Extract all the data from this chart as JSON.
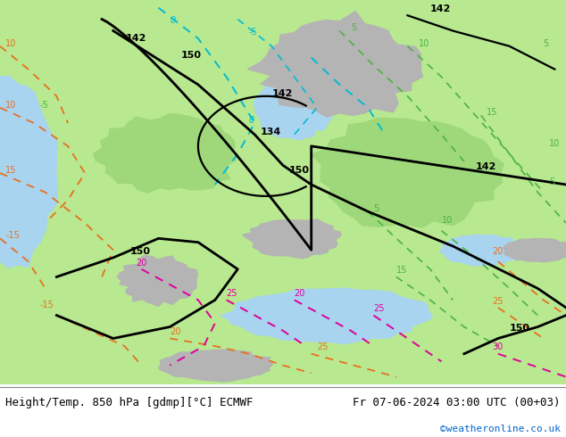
{
  "title_left": "Height/Temp. 850 hPa [gdmp][°C] ECMWF",
  "title_right": "Fr 07-06-2024 03:00 UTC (00+03)",
  "watermark": "©weatheronline.co.uk",
  "bg_color": "#b8e890",
  "land_color": "#c8f0a0",
  "water_color": "#a0d0f8",
  "gray_color": "#b0b0b0",
  "footer_bg": "#ffffff",
  "footer_text_color": "#000000",
  "watermark_color": "#0066cc",
  "font_size_title": 9,
  "font_size_watermark": 8
}
